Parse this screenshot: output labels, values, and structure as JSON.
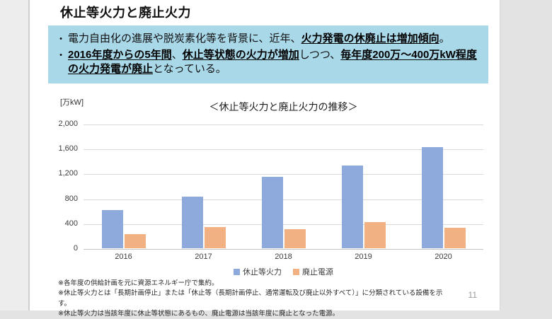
{
  "slide": {
    "title": "休止等火力と廃止火力",
    "page_number": "11"
  },
  "summary_box": {
    "background_color": "#a9d8e9",
    "bullet_char": "•",
    "bullets": [
      {
        "segments": [
          {
            "text": "電力自由化の進展や脱炭素化等を背景に、近年、",
            "emphasis": false
          },
          {
            "text": "火力発電の休廃止は増加傾向",
            "emphasis": true
          },
          {
            "text": "。",
            "emphasis": false
          }
        ]
      },
      {
        "segments": [
          {
            "text": "2016年度からの5年間",
            "emphasis": true
          },
          {
            "text": "、",
            "emphasis": false
          },
          {
            "text": "休止等状態の火力が増加",
            "emphasis": true
          },
          {
            "text": "しつつ、",
            "emphasis": false
          },
          {
            "text": "毎年度200万～400万kW程度の火力発電が廃止",
            "emphasis": true
          },
          {
            "text": "となっている。",
            "emphasis": false
          }
        ]
      }
    ]
  },
  "chart_data": {
    "type": "bar",
    "title": "＜休止等火力と廃止火力の推移＞",
    "unit_label": "[万kW]",
    "categories": [
      "2016",
      "2017",
      "2018",
      "2019",
      "2020"
    ],
    "series": [
      {
        "name": "休止等火力",
        "color": "#8ea9db",
        "values": [
          610,
          830,
          1150,
          1330,
          1620
        ]
      },
      {
        "name": "廃止電源",
        "color": "#f2b183",
        "values": [
          230,
          340,
          310,
          420,
          330
        ]
      }
    ],
    "ylim": [
      0,
      2000
    ],
    "yticks": [
      0,
      400,
      800,
      1200,
      1600,
      2000
    ],
    "ytick_labels": [
      "0",
      "400",
      "800",
      "1,200",
      "1,600",
      "2,000"
    ],
    "grid": true,
    "legend_position": "bottom"
  },
  "footnotes": [
    "※各年度の供給計画を元に資源エネルギー庁で集約。",
    "※休止等火力とは「長期計画停止」または「休止等（長期計画停止、通常運転及び廃止以外すべて）」に分類されている設備を示す。",
    "※休止等火力は当該年度に休止等状態にあるもの、廃止電源は当該年度に廃止となった電源。"
  ]
}
